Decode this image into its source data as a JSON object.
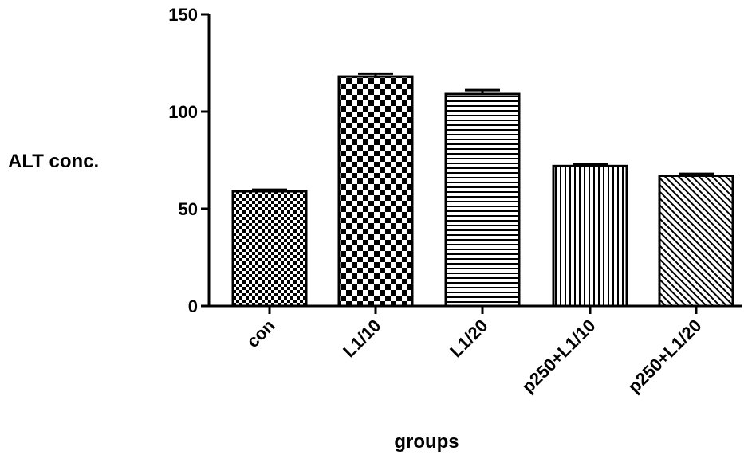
{
  "chart_data": {
    "type": "bar",
    "title": "",
    "xlabel": "groups",
    "ylabel": "ALT conc.",
    "ylim": [
      0,
      150
    ],
    "yticks": [
      0,
      50,
      100,
      150
    ],
    "grid": false,
    "categories": [
      "con",
      "L1/10",
      "L1/20",
      "p250+L1/10",
      "p250+L1/20"
    ],
    "values": [
      59,
      118,
      109,
      72,
      67
    ],
    "errors": [
      0.8,
      1.5,
      2.0,
      1.0,
      1.0
    ],
    "patterns": [
      "fine-checker",
      "coarse-checker",
      "horizontal-lines",
      "vertical-lines",
      "diagonal-lines"
    ],
    "colors": {
      "bar_fill": "#ffffff",
      "bar_stroke": "#000000",
      "axis": "#000000"
    }
  }
}
